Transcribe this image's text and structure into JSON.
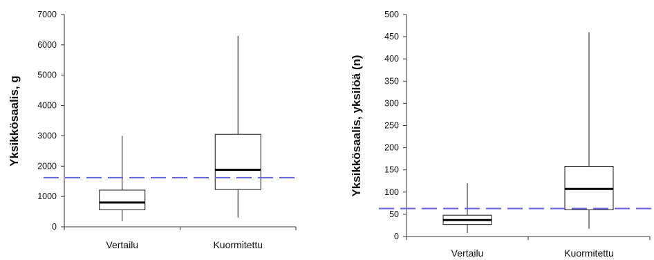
{
  "chart_data": [
    {
      "type": "box",
      "ylabel": "Yksikkösaalis, g",
      "categories": [
        "Vertailu",
        "Kuormitettu"
      ],
      "ylim": [
        0,
        7000
      ],
      "yticks": [
        0,
        1000,
        2000,
        3000,
        4000,
        5000,
        6000,
        7000
      ],
      "boxes": [
        {
          "min": 180,
          "q1": 560,
          "median": 800,
          "q3": 1210,
          "max": 3000
        },
        {
          "min": 300,
          "q1": 1230,
          "median": 1880,
          "q3": 3050,
          "max": 6300
        }
      ],
      "reference_line": 1620,
      "grid": false
    },
    {
      "type": "box",
      "ylabel": "Yksikkösaalis, yksilöä (n)",
      "categories": [
        "Vertailu",
        "Kuormitettu"
      ],
      "ylim": [
        0,
        500
      ],
      "yticks": [
        0,
        50,
        100,
        150,
        200,
        250,
        300,
        350,
        400,
        450,
        500
      ],
      "boxes": [
        {
          "min": 8,
          "q1": 27,
          "median": 37,
          "q3": 48,
          "max": 120
        },
        {
          "min": 18,
          "q1": 60,
          "median": 107,
          "q3": 158,
          "max": 460
        }
      ],
      "reference_line": 63,
      "grid": false
    }
  ],
  "style": {
    "axis_color": "#333333",
    "box_edge_color": "#111111",
    "median_color": "#000000",
    "reference_color": "#6666dd"
  }
}
